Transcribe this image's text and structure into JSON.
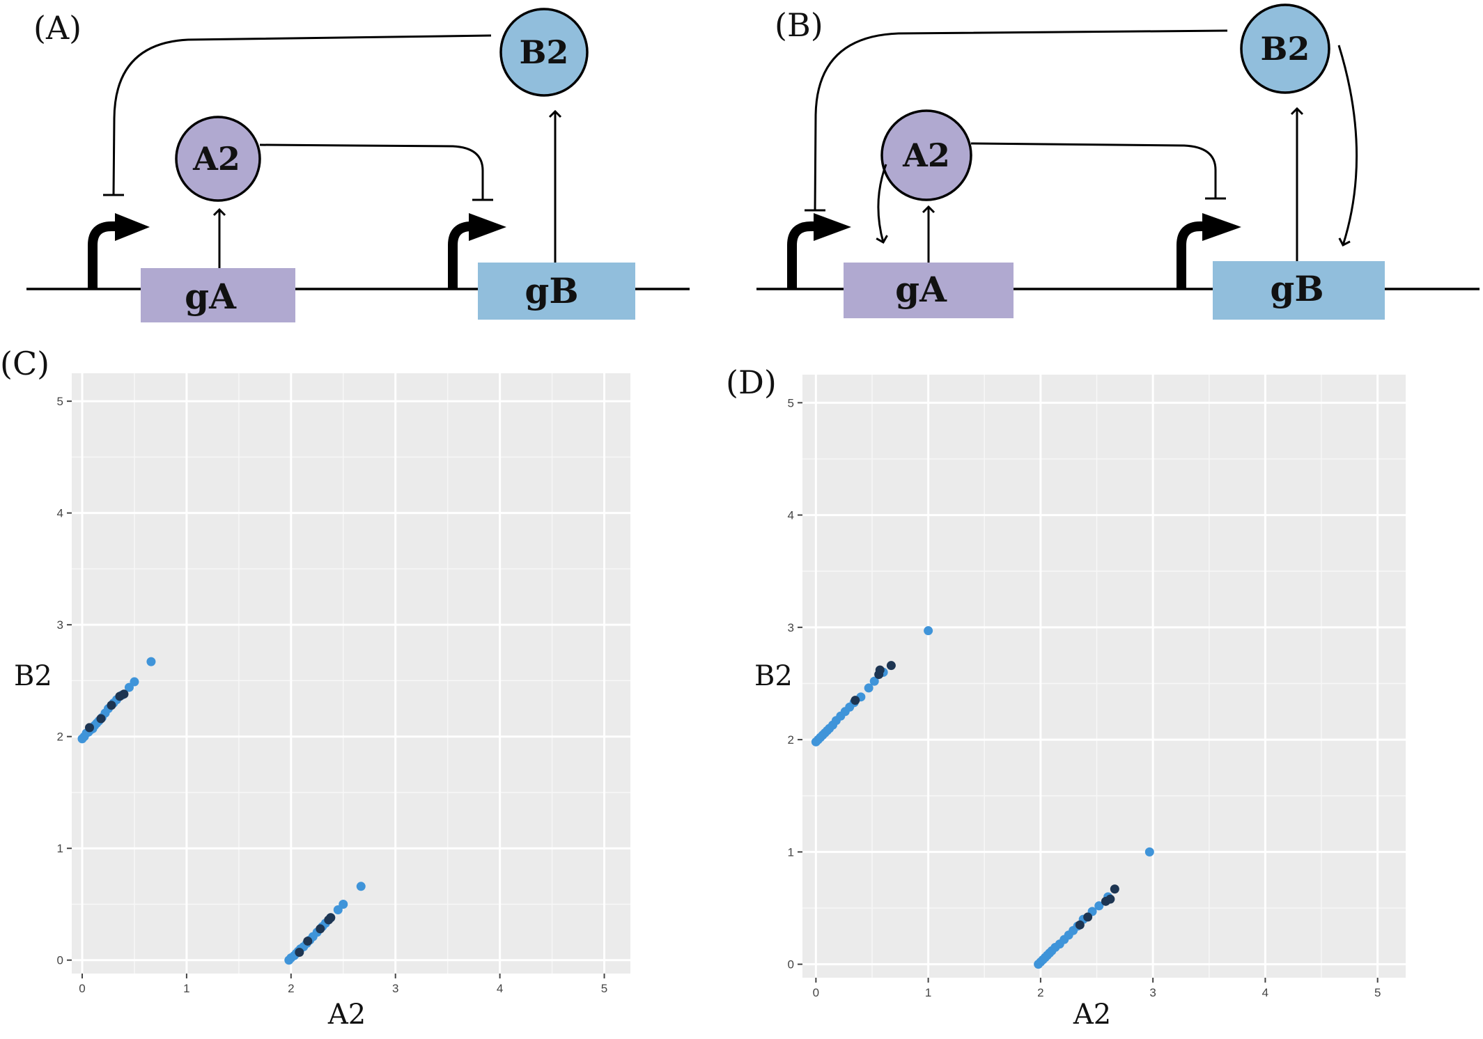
{
  "panels": {
    "A": "(A)",
    "B": "(B)",
    "C": "(C)",
    "D": "(D)"
  },
  "diagram": {
    "node_A": "A2",
    "node_B": "B2",
    "gene_A": "gA",
    "gene_B": "gB",
    "colors": {
      "a_node": "#b0a9d0",
      "b_node": "#91bedc",
      "a_gene": "#b0a9d0",
      "b_gene": "#91bedc"
    }
  },
  "chart_data": [
    {
      "type": "scatter",
      "panel": "(C)",
      "xlabel": "A2",
      "ylabel": "B2",
      "xlim": [
        -0.1,
        5.25
      ],
      "ylim": [
        -0.12,
        5.25
      ],
      "xticks": [
        "0",
        "1",
        "2",
        "3",
        "4",
        "5"
      ],
      "yticks": [
        "0",
        "1",
        "2",
        "3",
        "4",
        "5"
      ],
      "grid": true,
      "colors": {
        "light": "#3f94d9",
        "dark": "#1d3552",
        "panel_bg": "#ebebeb"
      },
      "series": [
        {
          "values": [
            [
              0.0,
              1.98
            ],
            [
              0.02,
              2.0
            ],
            [
              0.04,
              2.03
            ],
            [
              0.06,
              2.04
            ],
            [
              0.08,
              2.06
            ],
            [
              0.1,
              2.07
            ],
            [
              0.12,
              2.1
            ],
            [
              0.14,
              2.12
            ],
            [
              0.16,
              2.14
            ],
            [
              0.19,
              2.17
            ],
            [
              0.22,
              2.21
            ],
            [
              0.25,
              2.25
            ],
            [
              0.3,
              2.3
            ],
            [
              0.33,
              2.33
            ],
            [
              0.38,
              2.37
            ],
            [
              0.45,
              2.44
            ],
            [
              0.5,
              2.49
            ],
            [
              0.66,
              2.67
            ],
            [
              1.98,
              0.0
            ],
            [
              2.0,
              0.02
            ],
            [
              2.03,
              0.04
            ],
            [
              2.05,
              0.06
            ],
            [
              2.07,
              0.08
            ],
            [
              2.09,
              0.1
            ],
            [
              2.12,
              0.12
            ],
            [
              2.15,
              0.15
            ],
            [
              2.18,
              0.18
            ],
            [
              2.21,
              0.21
            ],
            [
              2.25,
              0.25
            ],
            [
              2.3,
              0.3
            ],
            [
              2.33,
              0.33
            ],
            [
              2.38,
              0.38
            ],
            [
              2.45,
              0.45
            ],
            [
              2.5,
              0.5
            ],
            [
              2.67,
              0.66
            ]
          ],
          "dark_values": [
            [
              0.07,
              2.08
            ],
            [
              0.18,
              2.16
            ],
            [
              0.28,
              2.28
            ],
            [
              0.36,
              2.36
            ],
            [
              0.4,
              2.38
            ],
            [
              2.08,
              0.07
            ],
            [
              2.16,
              0.17
            ],
            [
              2.28,
              0.28
            ],
            [
              2.36,
              0.36
            ],
            [
              2.38,
              0.38
            ]
          ]
        }
      ]
    },
    {
      "type": "scatter",
      "panel": "(D)",
      "xlabel": "A2",
      "ylabel": "B2",
      "xlim": [
        -0.12,
        5.25
      ],
      "ylim": [
        -0.12,
        5.25
      ],
      "xticks": [
        "0",
        "1",
        "2",
        "3",
        "4",
        "5"
      ],
      "yticks": [
        "0",
        "1",
        "2",
        "3",
        "4",
        "5"
      ],
      "grid": true,
      "colors": {
        "light": "#3f94d9",
        "dark": "#1d3552",
        "panel_bg": "#ebebeb"
      },
      "series": [
        {
          "values": [
            [
              0.0,
              1.98
            ],
            [
              0.02,
              2.0
            ],
            [
              0.04,
              2.02
            ],
            [
              0.06,
              2.04
            ],
            [
              0.08,
              2.06
            ],
            [
              0.1,
              2.08
            ],
            [
              0.12,
              2.1
            ],
            [
              0.15,
              2.13
            ],
            [
              0.18,
              2.17
            ],
            [
              0.22,
              2.21
            ],
            [
              0.26,
              2.25
            ],
            [
              0.3,
              2.29
            ],
            [
              0.34,
              2.33
            ],
            [
              0.4,
              2.38
            ],
            [
              0.47,
              2.46
            ],
            [
              0.52,
              2.52
            ],
            [
              0.6,
              2.6
            ],
            [
              1.0,
              2.97
            ],
            [
              1.98,
              0.0
            ],
            [
              2.0,
              0.02
            ],
            [
              2.02,
              0.04
            ],
            [
              2.04,
              0.06
            ],
            [
              2.06,
              0.08
            ],
            [
              2.08,
              0.1
            ],
            [
              2.1,
              0.12
            ],
            [
              2.13,
              0.15
            ],
            [
              2.17,
              0.18
            ],
            [
              2.21,
              0.22
            ],
            [
              2.25,
              0.26
            ],
            [
              2.29,
              0.3
            ],
            [
              2.33,
              0.34
            ],
            [
              2.38,
              0.4
            ],
            [
              2.46,
              0.47
            ],
            [
              2.52,
              0.52
            ],
            [
              2.6,
              0.6
            ],
            [
              2.97,
              1.0
            ]
          ],
          "dark_values": [
            [
              0.35,
              2.35
            ],
            [
              0.56,
              2.58
            ],
            [
              0.57,
              2.62
            ],
            [
              0.67,
              2.66
            ],
            [
              2.35,
              0.35
            ],
            [
              2.42,
              0.42
            ],
            [
              2.58,
              0.56
            ],
            [
              2.62,
              0.58
            ],
            [
              2.66,
              0.67
            ]
          ]
        }
      ]
    }
  ]
}
